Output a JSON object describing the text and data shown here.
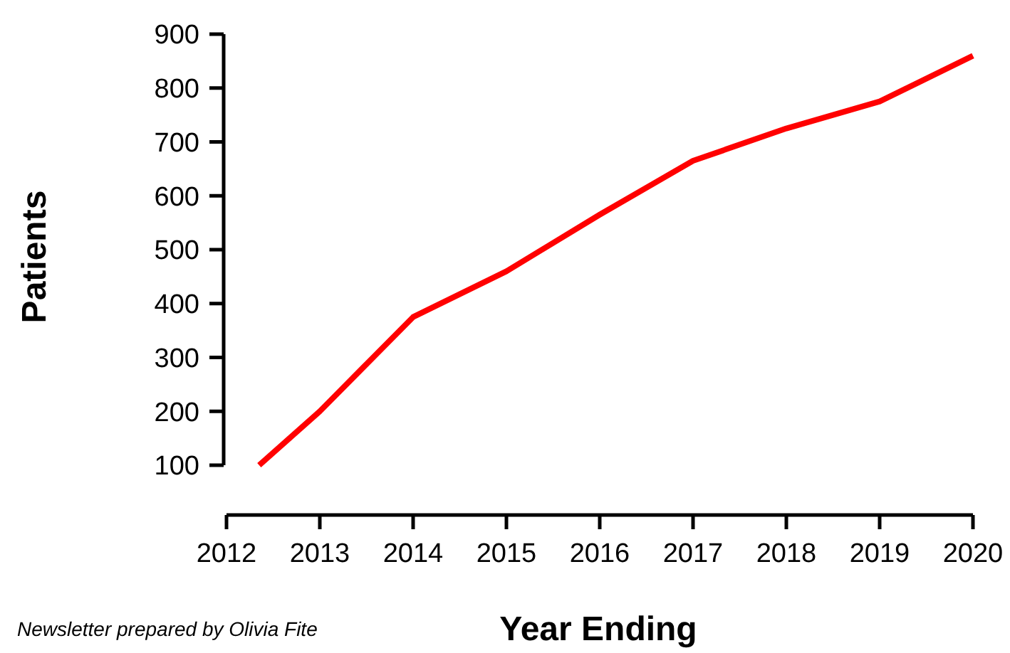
{
  "chart_data": {
    "type": "line",
    "xlabel": "Year Ending",
    "ylabel": "Patients",
    "x": [
      2012.35,
      2013,
      2014,
      2015,
      2016,
      2017,
      2018,
      2019,
      2020
    ],
    "series": [
      {
        "color": "#ff0000",
        "values": [
          100,
          200,
          375,
          460,
          565,
          665,
          725,
          775,
          860
        ]
      }
    ],
    "xlim": [
      2012,
      2020
    ],
    "xticks": [
      2012,
      2013,
      2014,
      2015,
      2016,
      2017,
      2018,
      2019,
      2020
    ],
    "ylim": [
      100,
      900
    ],
    "yticks": [
      100,
      200,
      300,
      400,
      500,
      600,
      700,
      800,
      900
    ],
    "grid": false,
    "marker": "none",
    "line_style": "solid",
    "annotations": [
      "Newsletter prepared by Olivia Fite"
    ]
  }
}
